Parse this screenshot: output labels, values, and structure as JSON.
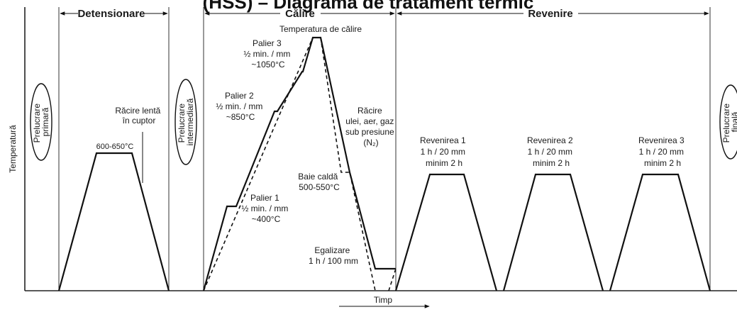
{
  "title": "(HSS) – Diagrama de tratament termic",
  "stages": {
    "detensionare": "Detensionare",
    "calire": "Călire",
    "revenire": "Revenire"
  },
  "prelucrare": {
    "primara": [
      "Prelucrare",
      "primară"
    ],
    "intermediara": [
      "Prelucrare",
      "intermediară"
    ],
    "finala": [
      "Prelucrare",
      "finală"
    ]
  },
  "axes": {
    "ylabel": "Temperatură",
    "xlabel": "Timp"
  },
  "annotations": {
    "detensionare_temp": "600-650°C",
    "racire_lenta": [
      "Răcire lentă",
      "în cuptor"
    ],
    "temperatura_calire": "Temperatura de călire",
    "palier3": [
      "Palier 3",
      "½ min. / mm",
      "~1050°C"
    ],
    "palier2": [
      "Palier 2",
      "½ min. / mm",
      "~850°C"
    ],
    "palier1": [
      "Palier 1",
      "½ min. / mm",
      "~400°C"
    ],
    "racire": [
      "Răcire",
      "ulei, aer, gaz",
      "sub presiune",
      "(N₂)"
    ],
    "baie_calda": [
      "Baie caldă",
      "500-550°C"
    ],
    "egalizare": [
      "Egalizare",
      "1 h / 100 mm"
    ],
    "revenirea1": [
      "Revenirea 1",
      "1 h / 20 mm",
      "minim 2 h"
    ],
    "revenirea2": [
      "Revenirea 2",
      "1 h / 20 mm",
      "minim 2 h"
    ],
    "revenirea3": [
      "Revenirea 3",
      "1 h / 20 mm",
      "minim 2 h"
    ]
  },
  "colors": {
    "ink": "#111111",
    "background": "#ffffff"
  }
}
